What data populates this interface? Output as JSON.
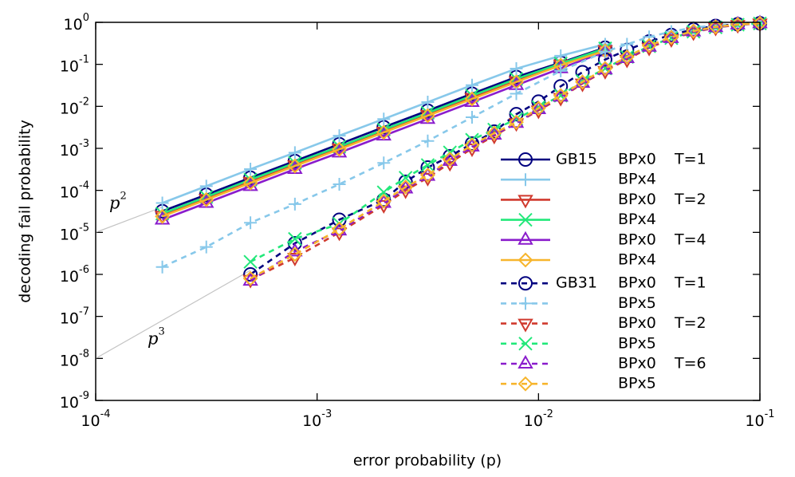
{
  "chart_data": {
    "type": "line",
    "xlabel": "error probability (p)",
    "ylabel": "decoding fail probability",
    "xscale": "log",
    "yscale": "log",
    "xlim": [
      0.0001,
      0.1
    ],
    "ylim": [
      1e-09,
      1
    ],
    "xticks": [
      {
        "value": 0.0001,
        "label": "10",
        "sup": "-4"
      },
      {
        "value": 0.001,
        "label": "10",
        "sup": "-3"
      },
      {
        "value": 0.01,
        "label": "10",
        "sup": "-2"
      },
      {
        "value": 0.1,
        "label": "10",
        "sup": "-1"
      }
    ],
    "yticks": [
      {
        "value": 1e-09,
        "label": "10",
        "sup": "-9"
      },
      {
        "value": 1e-08,
        "label": "10",
        "sup": "-8"
      },
      {
        "value": 1e-07,
        "label": "10",
        "sup": "-7"
      },
      {
        "value": 1e-06,
        "label": "10",
        "sup": "-6"
      },
      {
        "value": 1e-05,
        "label": "10",
        "sup": "-5"
      },
      {
        "value": 0.0001,
        "label": "10",
        "sup": "-4"
      },
      {
        "value": 0.001,
        "label": "10",
        "sup": "-3"
      },
      {
        "value": 0.01,
        "label": "10",
        "sup": "-2"
      },
      {
        "value": 0.1,
        "label": "10",
        "sup": "-1"
      },
      {
        "value": 1,
        "label": "10",
        "sup": "0"
      }
    ],
    "annotations": [
      {
        "text": "p",
        "sup": "2",
        "x": [
          0.0001,
          0.0002
        ],
        "values": [
          1e-05,
          4e-05
        ]
      },
      {
        "text": "p",
        "sup": "3",
        "x": [
          0.0001,
          0.0005
        ],
        "values": [
          1e-08,
          1.25e-06
        ]
      }
    ],
    "series": [
      {
        "group": "GB15",
        "name": "BPx0",
        "param": "T=1",
        "color": "#00007f",
        "marker": "circle",
        "dash": false,
        "x": [
          0.0002,
          0.000316,
          0.0005,
          0.000794,
          0.00126,
          0.002,
          0.00316,
          0.00501,
          0.00794,
          0.0126,
          0.02
        ],
        "values": [
          3.2e-05,
          7.9e-05,
          0.0002,
          0.0005,
          0.00126,
          0.0032,
          0.0079,
          0.02,
          0.05,
          0.11,
          0.25
        ]
      },
      {
        "name": "BPx4",
        "color": "#87c8ea",
        "marker": "plus",
        "dash": false,
        "x": [
          0.0002,
          0.000316,
          0.0005,
          0.000794,
          0.00126,
          0.002,
          0.00316,
          0.00501,
          0.00794,
          0.0126,
          0.02
        ],
        "values": [
          5e-05,
          0.000126,
          0.00032,
          0.00079,
          0.002,
          0.005,
          0.0126,
          0.032,
          0.079,
          0.16,
          0.3
        ]
      },
      {
        "name": "BPx0",
        "param": "T=2",
        "color": "#d03a2e",
        "marker": "tri-down",
        "dash": false,
        "x": [
          0.0002,
          0.000316,
          0.0005,
          0.000794,
          0.00126,
          0.002,
          0.00316,
          0.00501,
          0.00794,
          0.0126,
          0.02
        ],
        "values": [
          2.5e-05,
          6.3e-05,
          0.00016,
          0.0004,
          0.001,
          0.0025,
          0.0063,
          0.016,
          0.04,
          0.1,
          0.22
        ]
      },
      {
        "name": "BPx4",
        "color": "#22e87a",
        "marker": "cross",
        "dash": false,
        "x": [
          0.0002,
          0.000316,
          0.0005,
          0.000794,
          0.00126,
          0.002,
          0.00316,
          0.00501,
          0.00794,
          0.0126,
          0.02
        ],
        "values": [
          2.8e-05,
          7e-05,
          0.00018,
          0.00045,
          0.0011,
          0.0028,
          0.007,
          0.018,
          0.045,
          0.105,
          0.24
        ]
      },
      {
        "name": "BPx0",
        "param": "T=4",
        "color": "#8a1ccc",
        "marker": "tri-up",
        "dash": false,
        "x": [
          0.0002,
          0.000316,
          0.0005,
          0.000794,
          0.00126,
          0.002,
          0.00316,
          0.00501,
          0.00794,
          0.0126,
          0.02
        ],
        "values": [
          2e-05,
          5e-05,
          0.000126,
          0.00032,
          0.00079,
          0.002,
          0.005,
          0.0126,
          0.032,
          0.08,
          0.2
        ]
      },
      {
        "name": "BPx4",
        "color": "#f7b52c",
        "marker": "diamond",
        "dash": false,
        "x": [
          0.0002,
          0.000316,
          0.0005,
          0.000794,
          0.00126,
          0.002,
          0.00316,
          0.00501,
          0.00794,
          0.0126,
          0.02
        ],
        "values": [
          2.4e-05,
          6e-05,
          0.00015,
          0.00038,
          0.00095,
          0.0024,
          0.006,
          0.015,
          0.038,
          0.095,
          0.21
        ]
      },
      {
        "group": "GB31",
        "name": "BPx0",
        "param": "T=1",
        "color": "#00007f",
        "marker": "circle",
        "dash": true,
        "x": [
          0.0005,
          0.000794,
          0.00126,
          0.002,
          0.00251,
          0.00316,
          0.00398,
          0.00501,
          0.00631,
          0.00794,
          0.01,
          0.0126,
          0.0158,
          0.02,
          0.0251,
          0.0316,
          0.0398,
          0.0501,
          0.0631,
          0.0794,
          0.1
        ],
        "values": [
          1e-06,
          5.5e-06,
          2e-05,
          6e-05,
          0.00016,
          0.00035,
          0.00065,
          0.0013,
          0.0025,
          0.0065,
          0.013,
          0.03,
          0.065,
          0.13,
          0.22,
          0.35,
          0.5,
          0.68,
          0.82,
          0.9,
          0.95
        ]
      },
      {
        "name": "BPx5",
        "color": "#87c8ea",
        "marker": "plus",
        "dash": true,
        "x": [
          0.0002,
          0.000316,
          0.0005,
          0.000794,
          0.00126,
          0.002,
          0.00316,
          0.00501,
          0.00794,
          0.0126,
          0.02,
          0.0251,
          0.0316,
          0.0398,
          0.0501,
          0.0631,
          0.0794,
          0.1
        ],
        "values": [
          1.5e-06,
          4.5e-06,
          1.7e-05,
          4.7e-05,
          0.00014,
          0.00045,
          0.0015,
          0.0055,
          0.02,
          0.07,
          0.2,
          0.3,
          0.45,
          0.6,
          0.75,
          0.85,
          0.92,
          0.96
        ]
      },
      {
        "name": "BPx0",
        "param": "T=2",
        "color": "#d03a2e",
        "marker": "tri-down",
        "dash": true,
        "x": [
          0.0005,
          0.000794,
          0.00126,
          0.002,
          0.00251,
          0.00316,
          0.00398,
          0.00501,
          0.00631,
          0.00794,
          0.01,
          0.0126,
          0.0158,
          0.02,
          0.0251,
          0.0316,
          0.0398,
          0.0501,
          0.0631,
          0.0794,
          0.1
        ],
        "values": [
          7.5e-07,
          2.5e-06,
          1e-05,
          4.5e-05,
          0.0001,
          0.0002,
          0.00045,
          0.001,
          0.002,
          0.004,
          0.008,
          0.016,
          0.035,
          0.07,
          0.13,
          0.25,
          0.4,
          0.58,
          0.75,
          0.87,
          0.94
        ]
      },
      {
        "name": "BPx5",
        "color": "#22e87a",
        "marker": "cross",
        "dash": true,
        "x": [
          0.0005,
          0.000794,
          0.00126,
          0.002,
          0.00251,
          0.00316,
          0.00398,
          0.00501,
          0.00631,
          0.00794,
          0.01,
          0.0126,
          0.0158,
          0.02,
          0.0251,
          0.0316,
          0.0398,
          0.0501,
          0.0631,
          0.0794,
          0.1
        ],
        "values": [
          2e-06,
          7e-06,
          1.6e-05,
          9e-05,
          0.0002,
          0.0004,
          0.0008,
          0.0016,
          0.0028,
          0.005,
          0.0095,
          0.018,
          0.04,
          0.08,
          0.15,
          0.27,
          0.42,
          0.6,
          0.76,
          0.88,
          0.94
        ]
      },
      {
        "name": "BPx0",
        "param": "T=6",
        "color": "#8a1ccc",
        "marker": "tri-up",
        "dash": true,
        "x": [
          0.0005,
          0.000794,
          0.00126,
          0.002,
          0.00251,
          0.00316,
          0.00398,
          0.00501,
          0.00631,
          0.00794,
          0.01,
          0.0126,
          0.0158,
          0.02,
          0.0251,
          0.0316,
          0.0398,
          0.0501,
          0.0631,
          0.0794,
          0.1
        ],
        "values": [
          7e-07,
          3.5e-06,
          1.1e-05,
          5e-05,
          0.00011,
          0.00022,
          0.0005,
          0.0011,
          0.0021,
          0.004,
          0.0085,
          0.017,
          0.036,
          0.075,
          0.14,
          0.26,
          0.42,
          0.6,
          0.76,
          0.88,
          0.94
        ]
      },
      {
        "name": "BPx5",
        "color": "#f7b52c",
        "marker": "diamond",
        "dash": true,
        "x": [
          0.0005,
          0.000794,
          0.00126,
          0.002,
          0.00251,
          0.00316,
          0.00398,
          0.00501,
          0.00631,
          0.00794,
          0.01,
          0.0126,
          0.0158,
          0.02,
          0.0251,
          0.0316,
          0.0398,
          0.0501,
          0.0631,
          0.0794,
          0.1
        ],
        "values": [
          8e-07,
          3e-06,
          1.2e-05,
          5.5e-05,
          0.00012,
          0.00023,
          0.00055,
          0.0012,
          0.0023,
          0.0042,
          0.009,
          0.018,
          0.038,
          0.08,
          0.15,
          0.28,
          0.44,
          0.62,
          0.78,
          0.89,
          0.95
        ]
      }
    ]
  }
}
